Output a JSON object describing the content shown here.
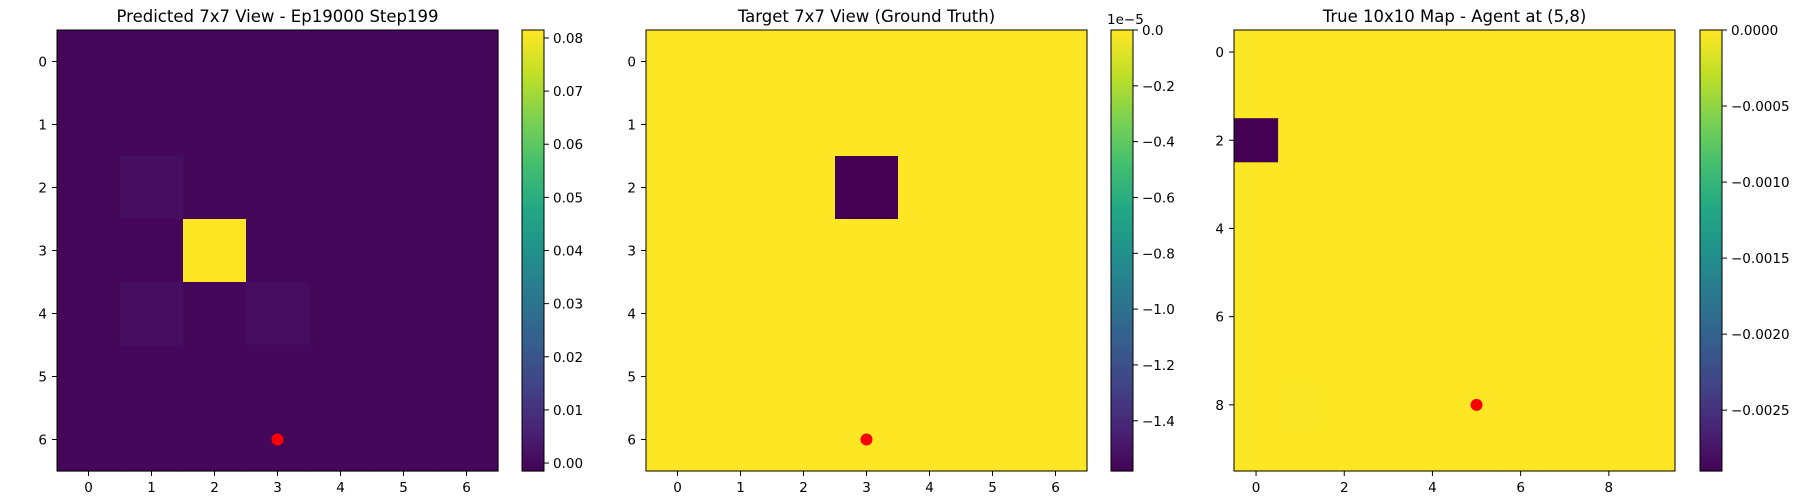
{
  "chart_data": [
    {
      "type": "heatmap",
      "title": "Predicted 7x7 View - Ep19000 Step199",
      "xticks": [
        0,
        1,
        2,
        3,
        4,
        5,
        6
      ],
      "yticks": [
        0,
        1,
        2,
        3,
        4,
        5,
        6
      ],
      "vmin": -0.0015,
      "vmax": 0.0815,
      "values": [
        [
          0,
          0,
          0,
          0,
          0,
          0,
          0
        ],
        [
          0,
          0,
          0,
          0,
          0,
          0,
          0
        ],
        [
          0,
          0.0015,
          0,
          0,
          0,
          0,
          0
        ],
        [
          0,
          0,
          0.0815,
          0,
          0,
          0,
          0
        ],
        [
          0,
          0.0015,
          0,
          0.0012,
          0,
          0,
          0
        ],
        [
          0,
          0,
          0,
          0,
          0,
          0,
          0
        ],
        [
          0,
          0,
          0,
          0,
          0,
          0,
          0
        ]
      ],
      "marker": {
        "x": 3,
        "y": 6,
        "color": "#ff0000"
      },
      "colorbar": {
        "ticks": [
          0.08,
          0.07,
          0.06,
          0.05,
          0.04,
          0.03,
          0.02,
          0.01,
          0.0
        ],
        "tick_labels": [
          "0.08",
          "0.07",
          "0.06",
          "0.05",
          "0.04",
          "0.03",
          "0.02",
          "0.01",
          "0.00"
        ],
        "exponent_label": ""
      }
    },
    {
      "type": "heatmap",
      "title": "Target 7x7 View (Ground Truth)",
      "xticks": [
        0,
        1,
        2,
        3,
        4,
        5,
        6
      ],
      "yticks": [
        0,
        1,
        2,
        3,
        4,
        5,
        6
      ],
      "vmin": -1.58,
      "vmax": 0,
      "values": [
        [
          0,
          0,
          0,
          0,
          0,
          0,
          0
        ],
        [
          0,
          0,
          0,
          0,
          0,
          0,
          0
        ],
        [
          0,
          0,
          0,
          -1.58,
          0,
          0,
          0
        ],
        [
          0,
          0,
          0,
          0,
          0,
          0,
          0
        ],
        [
          0,
          0,
          0,
          0,
          0,
          0,
          0
        ],
        [
          0,
          0,
          0,
          0,
          0,
          0,
          0
        ],
        [
          0,
          0,
          0,
          0,
          0,
          0,
          0
        ]
      ],
      "marker": {
        "x": 3,
        "y": 6,
        "color": "#ff0000"
      },
      "colorbar": {
        "ticks": [
          0.0,
          -0.2,
          -0.4,
          -0.6,
          -0.8,
          -1.0,
          -1.2,
          -1.4
        ],
        "tick_labels": [
          "0.0",
          "−0.2",
          "−0.4",
          "−0.6",
          "−0.8",
          "−1.0",
          "−1.2",
          "−1.4"
        ],
        "exponent_label": "1e−5"
      }
    },
    {
      "type": "heatmap",
      "title": "True 10x10 Map - Agent at (5,8)",
      "xticks": [
        0,
        2,
        4,
        6,
        8
      ],
      "yticks": [
        0,
        2,
        4,
        6,
        8
      ],
      "vmin": -0.0029,
      "vmax": 0,
      "values": [
        [
          0,
          0,
          0,
          0,
          0,
          0,
          0,
          0,
          0,
          0
        ],
        [
          0,
          0,
          0,
          0,
          0,
          0,
          0,
          0,
          0,
          0
        ],
        [
          -0.0029,
          0,
          0,
          0,
          0,
          0,
          0,
          0,
          0,
          0
        ],
        [
          0,
          0,
          0,
          0,
          0,
          0,
          0,
          0,
          0,
          0
        ],
        [
          0,
          0,
          0,
          0,
          0,
          0,
          0,
          0,
          0,
          0
        ],
        [
          0,
          0,
          0,
          0,
          0,
          0,
          0,
          0,
          0,
          0
        ],
        [
          0,
          0,
          0,
          0,
          0,
          0,
          0,
          0,
          0,
          0
        ],
        [
          0,
          0,
          0,
          0,
          0,
          0,
          0,
          0,
          0,
          0
        ],
        [
          0,
          -2e-05,
          0,
          0,
          0,
          0,
          0,
          0,
          0,
          0
        ],
        [
          0,
          0,
          0,
          0,
          0,
          0,
          0,
          0,
          0,
          0
        ]
      ],
      "marker": {
        "x": 5,
        "y": 8,
        "color": "#ff0000"
      },
      "colorbar": {
        "ticks": [
          0.0,
          -0.0005,
          -0.001,
          -0.0015,
          -0.002,
          -0.0025
        ],
        "tick_labels": [
          "0.0000",
          "−0.0005",
          "−0.0010",
          "−0.0015",
          "−0.0020",
          "−0.0025"
        ],
        "exponent_label": ""
      }
    }
  ]
}
